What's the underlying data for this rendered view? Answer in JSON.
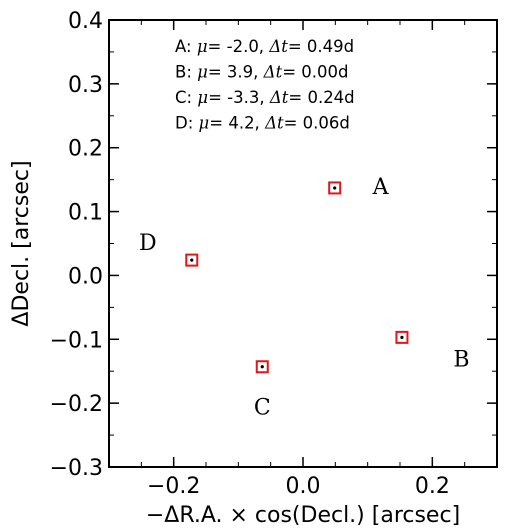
{
  "chart_data": {
    "type": "scatter",
    "xlabel": "−ΔR.A. × cos(Decl.) [arcsec]",
    "ylabel": "ΔDecl. [arcsec]",
    "xlim": [
      -0.3,
      0.3
    ],
    "ylim": [
      -0.3,
      0.4
    ],
    "xticks": [
      -0.2,
      0.0,
      0.2
    ],
    "xtick_labels": [
      "−0.2",
      "0.0",
      "0.2"
    ],
    "yticks": [
      -0.3,
      -0.2,
      -0.1,
      0.0,
      0.1,
      0.2,
      0.3,
      0.4
    ],
    "ytick_labels": [
      "−0.3",
      "−0.2",
      "−0.1",
      "0.0",
      "0.1",
      "0.2",
      "0.3",
      "0.4"
    ],
    "grid": false,
    "points": [
      {
        "label": "A",
        "x": 0.049,
        "y": 0.137,
        "label_x": 0.12,
        "label_y": 0.14
      },
      {
        "label": "B",
        "x": 0.153,
        "y": -0.097,
        "label_x": 0.245,
        "label_y": -0.13
      },
      {
        "label": "C",
        "x": -0.063,
        "y": -0.143,
        "label_x": -0.063,
        "label_y": -0.205
      },
      {
        "label": "D",
        "x": -0.172,
        "y": 0.024,
        "label_x": -0.24,
        "label_y": 0.052
      }
    ],
    "legend": {
      "placement": "top-center",
      "entries": [
        {
          "prefix": "A: ",
          "mu_symbol": "μ",
          "mu_value": "= -2.0",
          "dt_symbol": "Δt",
          "dt_value": "= 0.49d"
        },
        {
          "prefix": "B: ",
          "mu_symbol": "μ",
          "mu_value": "=  3.9",
          "dt_symbol": "Δt",
          "dt_value": "= 0.00d"
        },
        {
          "prefix": "C: ",
          "mu_symbol": "μ",
          "mu_value": "= -3.3",
          "dt_symbol": "Δt",
          "dt_value": "= 0.24d"
        },
        {
          "prefix": "D: ",
          "mu_symbol": "μ",
          "mu_value": "=  4.2",
          "dt_symbol": "Δt",
          "dt_value": "= 0.06d"
        }
      ]
    },
    "colors": {
      "marker": "#e0161b",
      "center_dot": "#000000",
      "axes": "#000000"
    }
  }
}
